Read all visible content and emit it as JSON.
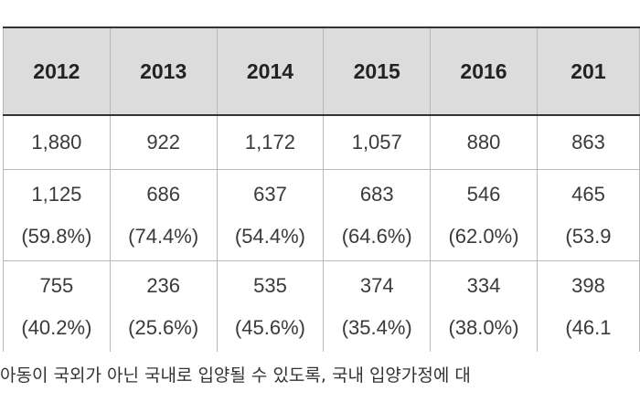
{
  "table": {
    "headers": [
      "2012",
      "2013",
      "2014",
      "2015",
      "2016",
      "201"
    ],
    "rows": [
      [
        {
          "value": "1,880"
        },
        {
          "value": "922"
        },
        {
          "value": "1,172"
        },
        {
          "value": "1,057"
        },
        {
          "value": "880"
        },
        {
          "value": "863"
        }
      ],
      [
        {
          "value": "1,125",
          "pct": "(59.8%)"
        },
        {
          "value": "686",
          "pct": "(74.4%)"
        },
        {
          "value": "637",
          "pct": "(54.4%)"
        },
        {
          "value": "683",
          "pct": "(64.6%)"
        },
        {
          "value": "546",
          "pct": "(62.0%)"
        },
        {
          "value": "465",
          "pct": "(53.9"
        }
      ],
      [
        {
          "value": "755",
          "pct": "(40.2%)"
        },
        {
          "value": "236",
          "pct": "(25.6%)"
        },
        {
          "value": "535",
          "pct": "(45.6%)"
        },
        {
          "value": "374",
          "pct": "(35.4%)"
        },
        {
          "value": "334",
          "pct": "(38.0%)"
        },
        {
          "value": "398",
          "pct": "(46.1"
        }
      ]
    ]
  },
  "footnote": "아동이 국외가 아닌 국내로 입양될 수 있도록, 국내 입양가정에 대"
}
